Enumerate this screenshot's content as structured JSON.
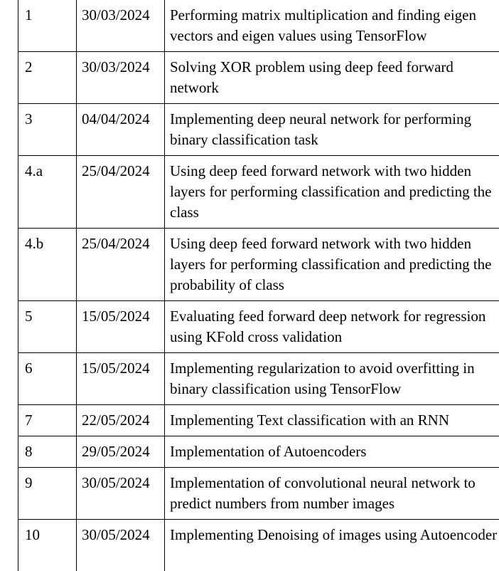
{
  "rows": [
    {
      "no": "1",
      "date": "30/03/2024",
      "title": "Performing matrix multiplication and finding eigen vectors and eigen values using TensorFlow"
    },
    {
      "no": "2",
      "date": "30/03/2024",
      "title": "Solving XOR problem using deep feed forward network"
    },
    {
      "no": "3",
      "date": "04/04/2024",
      "title": "Implementing deep neural network for performing binary classification task"
    },
    {
      "no": "4.a",
      "date": "25/04/2024",
      "title": "Using deep feed forward network with two hidden layers for performing classification and predicting the class"
    },
    {
      "no": "4.b",
      "date": "25/04/2024",
      "title": "Using deep feed forward network with two hidden layers for performing classification and predicting the probability of class"
    },
    {
      "no": "5",
      "date": "15/05/2024",
      "title": "Evaluating feed forward deep network for regression using KFold cross validation"
    },
    {
      "no": "6",
      "date": "15/05/2024",
      "title": "Implementing regularization to avoid overfitting in binary classification using TensorFlow"
    },
    {
      "no": "7",
      "date": "22/05/2024",
      "title": "Implementing Text classification with an RNN"
    },
    {
      "no": "8",
      "date": "29/05/2024",
      "title": "Implementation of Autoencoders"
    },
    {
      "no": "9",
      "date": "30/05/2024",
      "title": "Implementation of convolutional neural network to predict numbers from number images"
    },
    {
      "no": "10",
      "date": "30/05/2024",
      "title": "Implementing Denoising of images using Autoencoder"
    }
  ]
}
